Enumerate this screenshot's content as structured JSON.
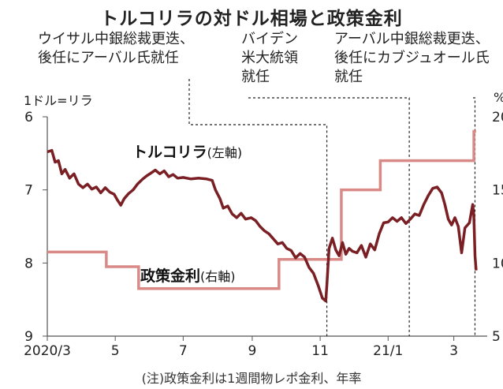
{
  "title": "トルコリラの対ドル相場と政策金利",
  "annotations": [
    {
      "text": "ウイサル中銀総裁更迭、\n後任にアーバル氏就任"
    },
    {
      "text": "バイデン\n米大統領\n就任"
    },
    {
      "text": "アーバル中銀総裁更迭、\n後任にカブジュオール氏\n就任"
    }
  ],
  "note": "(注)政策金利は1週間物レポ金利、年率",
  "chart_data": {
    "type": "line",
    "left_axis": {
      "label": "1ドル=リラ",
      "ticks": [
        6,
        7,
        8,
        9
      ],
      "ylim": [
        6,
        9
      ],
      "inverted": true
    },
    "right_axis": {
      "label": "%",
      "ticks": [
        20,
        15,
        10,
        5
      ],
      "ylim": [
        5,
        20
      ]
    },
    "x_ticks": [
      "2020/3",
      "5",
      "7",
      "9",
      "11",
      "21/1",
      "3"
    ],
    "x_tick_positions": [
      "2020-03-01",
      "2020-05-01",
      "2020-07-01",
      "2020-09-01",
      "2020-11-01",
      "2021-01-01",
      "2021-03-01"
    ],
    "xlim": [
      "2020-03-01",
      "2021-03-31"
    ],
    "series": [
      {
        "name": "トルコリラ",
        "axis_note": "(左軸)",
        "color": "#7a1f24",
        "points": [
          [
            "2020-03-01",
            6.48
          ],
          [
            "2020-03-05",
            6.46
          ],
          [
            "2020-03-08",
            6.62
          ],
          [
            "2020-03-11",
            6.6
          ],
          [
            "2020-03-14",
            6.78
          ],
          [
            "2020-03-17",
            6.72
          ],
          [
            "2020-03-21",
            6.84
          ],
          [
            "2020-03-25",
            6.78
          ],
          [
            "2020-03-29",
            6.92
          ],
          [
            "2020-04-02",
            6.97
          ],
          [
            "2020-04-06",
            6.92
          ],
          [
            "2020-04-10",
            6.99
          ],
          [
            "2020-04-14",
            6.96
          ],
          [
            "2020-04-18",
            7.04
          ],
          [
            "2020-04-22",
            6.97
          ],
          [
            "2020-04-26",
            7.03
          ],
          [
            "2020-04-30",
            7.06
          ],
          [
            "2020-05-03",
            7.14
          ],
          [
            "2020-05-06",
            7.21
          ],
          [
            "2020-05-09",
            7.12
          ],
          [
            "2020-05-13",
            7.05
          ],
          [
            "2020-05-17",
            7.0
          ],
          [
            "2020-05-21",
            6.92
          ],
          [
            "2020-05-25",
            6.86
          ],
          [
            "2020-05-29",
            6.81
          ],
          [
            "2020-06-02",
            6.77
          ],
          [
            "2020-06-06",
            6.73
          ],
          [
            "2020-06-10",
            6.78
          ],
          [
            "2020-06-14",
            6.74
          ],
          [
            "2020-06-18",
            6.82
          ],
          [
            "2020-06-22",
            6.79
          ],
          [
            "2020-06-26",
            6.84
          ],
          [
            "2020-07-01",
            6.83
          ],
          [
            "2020-07-08",
            6.85
          ],
          [
            "2020-07-15",
            6.84
          ],
          [
            "2020-07-22",
            6.85
          ],
          [
            "2020-07-27",
            6.87
          ],
          [
            "2020-07-30",
            7.0
          ],
          [
            "2020-08-03",
            7.12
          ],
          [
            "2020-08-06",
            7.25
          ],
          [
            "2020-08-10",
            7.22
          ],
          [
            "2020-08-14",
            7.33
          ],
          [
            "2020-08-18",
            7.38
          ],
          [
            "2020-08-22",
            7.32
          ],
          [
            "2020-08-26",
            7.4
          ],
          [
            "2020-08-31",
            7.38
          ],
          [
            "2020-09-04",
            7.42
          ],
          [
            "2020-09-08",
            7.5
          ],
          [
            "2020-09-12",
            7.56
          ],
          [
            "2020-09-16",
            7.6
          ],
          [
            "2020-09-20",
            7.67
          ],
          [
            "2020-09-24",
            7.74
          ],
          [
            "2020-09-28",
            7.72
          ],
          [
            "2020-10-02",
            7.8
          ],
          [
            "2020-10-06",
            7.83
          ],
          [
            "2020-10-10",
            7.93
          ],
          [
            "2020-10-14",
            7.87
          ],
          [
            "2020-10-18",
            7.92
          ],
          [
            "2020-10-22",
            8.06
          ],
          [
            "2020-10-26",
            8.14
          ],
          [
            "2020-10-30",
            8.3
          ],
          [
            "2020-11-03",
            8.48
          ],
          [
            "2020-11-06",
            8.52
          ],
          [
            "2020-11-07",
            8.3
          ],
          [
            "2020-11-09",
            7.8
          ],
          [
            "2020-11-12",
            7.66
          ],
          [
            "2020-11-15",
            7.82
          ],
          [
            "2020-11-18",
            7.9
          ],
          [
            "2020-11-21",
            7.72
          ],
          [
            "2020-11-24",
            7.88
          ],
          [
            "2020-11-27",
            7.8
          ],
          [
            "2020-11-30",
            7.84
          ],
          [
            "2020-12-04",
            7.86
          ],
          [
            "2020-12-08",
            7.76
          ],
          [
            "2020-12-12",
            7.92
          ],
          [
            "2020-12-16",
            7.74
          ],
          [
            "2020-12-20",
            7.82
          ],
          [
            "2020-12-24",
            7.6
          ],
          [
            "2020-12-28",
            7.45
          ],
          [
            "2021-01-01",
            7.44
          ],
          [
            "2021-01-05",
            7.38
          ],
          [
            "2021-01-09",
            7.43
          ],
          [
            "2021-01-13",
            7.38
          ],
          [
            "2021-01-17",
            7.46
          ],
          [
            "2021-01-21",
            7.4
          ],
          [
            "2021-01-25",
            7.33
          ],
          [
            "2021-01-29",
            7.35
          ],
          [
            "2021-02-02",
            7.2
          ],
          [
            "2021-02-06",
            7.08
          ],
          [
            "2021-02-10",
            6.98
          ],
          [
            "2021-02-14",
            6.96
          ],
          [
            "2021-02-18",
            7.04
          ],
          [
            "2021-02-21",
            7.2
          ],
          [
            "2021-02-24",
            7.4
          ],
          [
            "2021-02-27",
            7.48
          ],
          [
            "2021-03-02",
            7.38
          ],
          [
            "2021-03-05",
            7.5
          ],
          [
            "2021-03-08",
            7.86
          ],
          [
            "2021-03-11",
            7.52
          ],
          [
            "2021-03-15",
            7.45
          ],
          [
            "2021-03-18",
            7.2
          ],
          [
            "2021-03-19",
            7.35
          ],
          [
            "2021-03-20",
            7.9
          ],
          [
            "2021-03-21",
            8.1
          ]
        ]
      },
      {
        "name": "政策金利",
        "axis_note": "(右軸)",
        "color": "#d98a86",
        "steps": [
          [
            "2020-03-01",
            10.75
          ],
          [
            "2020-04-23",
            9.75
          ],
          [
            "2020-05-22",
            8.25
          ],
          [
            "2020-09-25",
            10.25
          ],
          [
            "2020-11-20",
            15.0
          ],
          [
            "2020-12-25",
            17.0
          ],
          [
            "2021-03-19",
            19.0
          ],
          [
            "2021-03-21",
            19.0
          ]
        ]
      }
    ],
    "events": [
      {
        "date": "2020-11-07"
      },
      {
        "date": "2021-01-20"
      },
      {
        "date": "2021-03-20"
      }
    ]
  }
}
